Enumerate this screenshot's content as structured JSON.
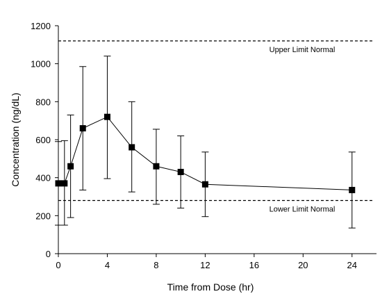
{
  "chart_data": {
    "type": "line",
    "xlabel": "Time from Dose (hr)",
    "ylabel": "Concentration (ng/dL)",
    "xlim": [
      0,
      26
    ],
    "ylim": [
      0,
      1200
    ],
    "x_ticks": [
      0,
      4,
      8,
      12,
      16,
      20,
      24
    ],
    "y_ticks": [
      0,
      200,
      400,
      600,
      800,
      1000,
      1200
    ],
    "grid": false,
    "series": [
      {
        "x": [
          0,
          0.5,
          1,
          2,
          4,
          6,
          8,
          10,
          12,
          24
        ],
        "y": [
          370,
          370,
          460,
          660,
          720,
          560,
          460,
          430,
          365,
          335
        ],
        "error_low": [
          150,
          150,
          190,
          335,
          395,
          325,
          260,
          240,
          195,
          135
        ],
        "error_high": [
          590,
          595,
          730,
          985,
          1040,
          800,
          655,
          620,
          535,
          535
        ]
      }
    ],
    "reference_lines": [
      {
        "label": "Upper Limit Normal",
        "y": 1120
      },
      {
        "label": "Lower Limit Normal",
        "y": 280
      }
    ]
  }
}
